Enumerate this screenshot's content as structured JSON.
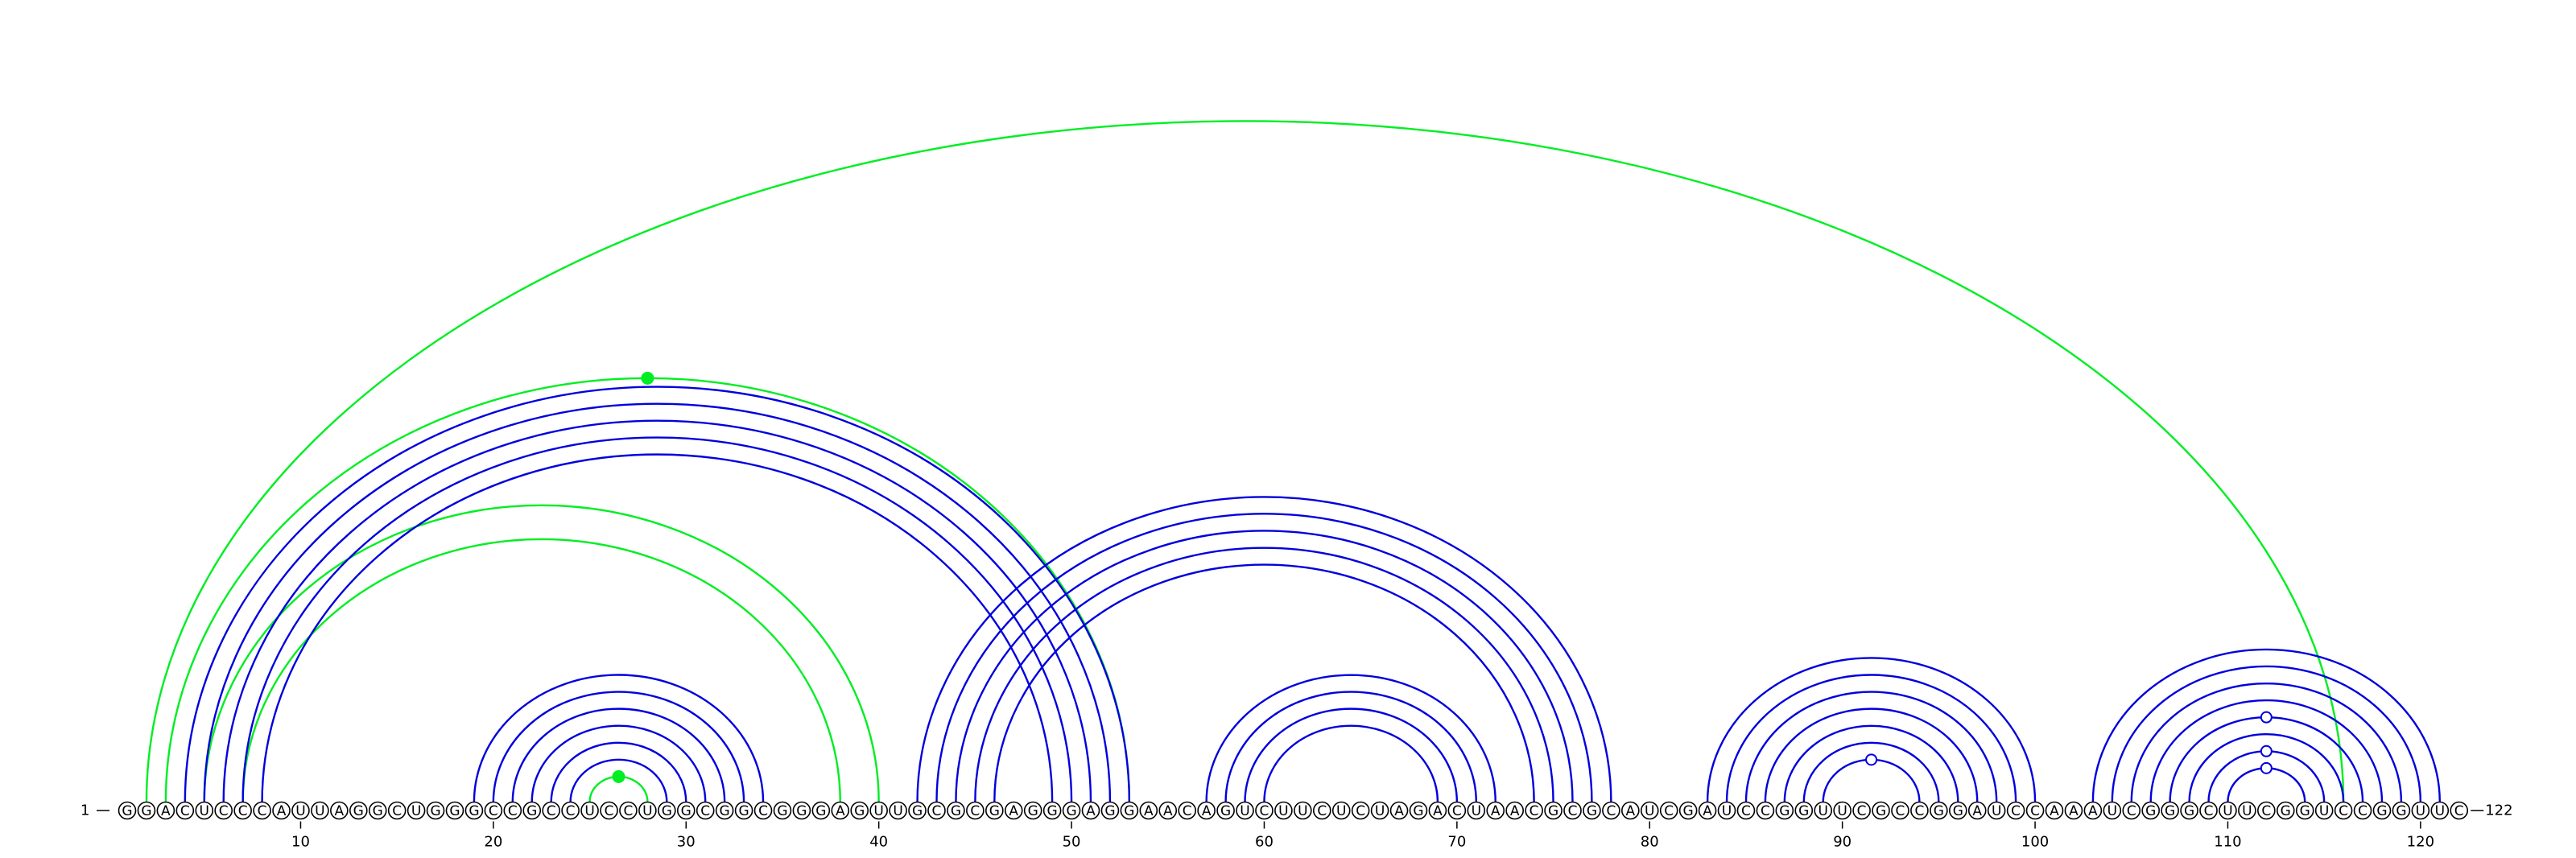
{
  "sequence": "GGACUCCCAUUAGGCUGGGCCGCCUCCUGGCGGCGGGAGUUGCGCGAGGGAGGAACAGUCUUCUCUAGACUAACGCGCAUCGAUCCGGUUCGCCGGAUCCAAAUCGGGCUUCGGUCCGGUUC",
  "start_label": "1",
  "end_label": "122",
  "ticks": [
    "10",
    "20",
    "30",
    "40",
    "50",
    "60",
    "70",
    "80",
    "90",
    "100",
    "110",
    "120"
  ],
  "colors": {
    "pair": "#0000dd",
    "alt_pair": "#00ee22",
    "nucleotide_outline": "#000000"
  },
  "blue_pairs": [
    [
      4,
      53
    ],
    [
      5,
      52
    ],
    [
      6,
      51
    ],
    [
      7,
      50
    ],
    [
      8,
      49
    ],
    [
      19,
      34
    ],
    [
      20,
      33
    ],
    [
      21,
      32
    ],
    [
      22,
      31
    ],
    [
      23,
      30
    ],
    [
      24,
      29
    ],
    [
      42,
      78
    ],
    [
      43,
      77
    ],
    [
      44,
      76
    ],
    [
      45,
      75
    ],
    [
      46,
      74
    ],
    [
      57,
      72
    ],
    [
      58,
      71
    ],
    [
      59,
      70
    ],
    [
      60,
      69
    ],
    [
      83,
      100
    ],
    [
      84,
      99
    ],
    [
      85,
      98
    ],
    [
      86,
      97
    ],
    [
      87,
      96
    ],
    [
      88,
      95
    ],
    [
      89,
      94
    ],
    [
      103,
      121
    ],
    [
      104,
      120
    ],
    [
      105,
      119
    ],
    [
      106,
      118
    ],
    [
      107,
      117
    ],
    [
      108,
      116
    ],
    [
      109,
      115
    ],
    [
      110,
      114
    ]
  ],
  "green_pairs": [
    [
      2,
      116
    ],
    [
      3,
      53
    ],
    [
      5,
      40
    ],
    [
      7,
      38
    ],
    [
      25,
      28
    ]
  ],
  "markers": [
    {
      "pair": [
        3,
        53
      ],
      "style": "filled",
      "color": "#00ee22"
    },
    {
      "pair": [
        25,
        28
      ],
      "style": "filled",
      "color": "#00ee22"
    },
    {
      "pair": [
        89,
        94
      ],
      "style": "open",
      "color": "#0000dd"
    },
    {
      "pair": [
        110,
        114
      ],
      "style": "open",
      "color": "#0000dd"
    },
    {
      "pair": [
        109,
        115
      ],
      "style": "open",
      "color": "#0000dd"
    },
    {
      "pair": [
        107,
        117
      ],
      "style": "open",
      "color": "#0000dd"
    }
  ]
}
